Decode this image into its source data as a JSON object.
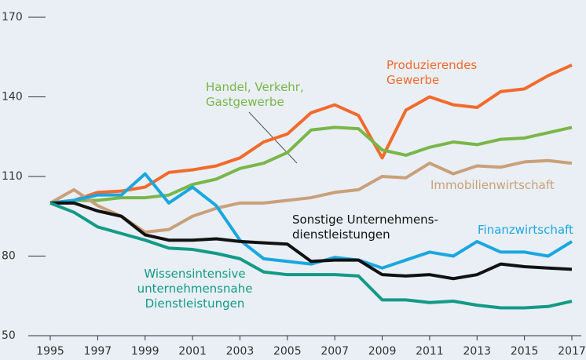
{
  "chart_data": {
    "type": "line",
    "x": [
      1995,
      1996,
      1997,
      1998,
      1999,
      2000,
      2001,
      2002,
      2003,
      2004,
      2005,
      2006,
      2007,
      2008,
      2009,
      2010,
      2011,
      2012,
      2013,
      2014,
      2015,
      2016,
      2017
    ],
    "xticks": [
      1995,
      1997,
      1999,
      2001,
      2003,
      2005,
      2007,
      2009,
      2011,
      2013,
      2015,
      2017
    ],
    "xlim": [
      1995,
      2017
    ],
    "ylim": [
      50,
      170
    ],
    "yticks": [
      50,
      80,
      110,
      140,
      170
    ],
    "series": [
      {
        "name": "Produzierendes Gewerbe",
        "color": "#f26a2c",
        "values": [
          100,
          101,
          104,
          104.5,
          106,
          111.5,
          112.5,
          114,
          117,
          123,
          126,
          134,
          137,
          133,
          117,
          135,
          140,
          137,
          136,
          142,
          143,
          148,
          152
        ]
      },
      {
        "name": "Handel, Verkehr, Gastgewerbe",
        "color": "#7ab648",
        "values": [
          100,
          101,
          101,
          102,
          102,
          103,
          107,
          109,
          113,
          115,
          119,
          127.5,
          128.5,
          128,
          120,
          118,
          121,
          123,
          122,
          124,
          124.5,
          126.5,
          128.5
        ]
      },
      {
        "name": "Immobilienwirtschaft",
        "color": "#c9a07a",
        "values": [
          100,
          105,
          99,
          95,
          89,
          90,
          95,
          98,
          100,
          100,
          101,
          102,
          104,
          105,
          110,
          109.5,
          115,
          111,
          114,
          113.5,
          115.5,
          116,
          115
        ]
      },
      {
        "name": "Finanzwirtschaft",
        "color": "#1aa7e0",
        "values": [
          100,
          101,
          103,
          103,
          111,
          100,
          106,
          99,
          86,
          79,
          78,
          77,
          79.5,
          78.5,
          75.5,
          78.5,
          81.5,
          80,
          85.5,
          81.5,
          81.5,
          80,
          85.5
        ]
      },
      {
        "name": "Sonstige Unternehmens­dienstleistungen",
        "color": "#111111",
        "values": [
          100,
          100,
          97,
          95,
          88,
          86,
          86,
          86.5,
          85.5,
          85,
          84.5,
          78,
          78.5,
          78.5,
          73,
          72.5,
          73,
          71.5,
          73,
          77,
          76,
          75.5,
          75
        ]
      },
      {
        "name": "Wissensintensive unternehmensnahe Dienstleistungen",
        "color": "#139a87",
        "values": [
          100,
          96.5,
          91,
          88.5,
          86,
          83,
          82.5,
          81,
          79,
          74,
          73,
          73,
          73,
          72.5,
          63.5,
          63.5,
          62.5,
          63,
          61.5,
          60.5,
          60.5,
          61,
          63
        ]
      }
    ]
  }
}
